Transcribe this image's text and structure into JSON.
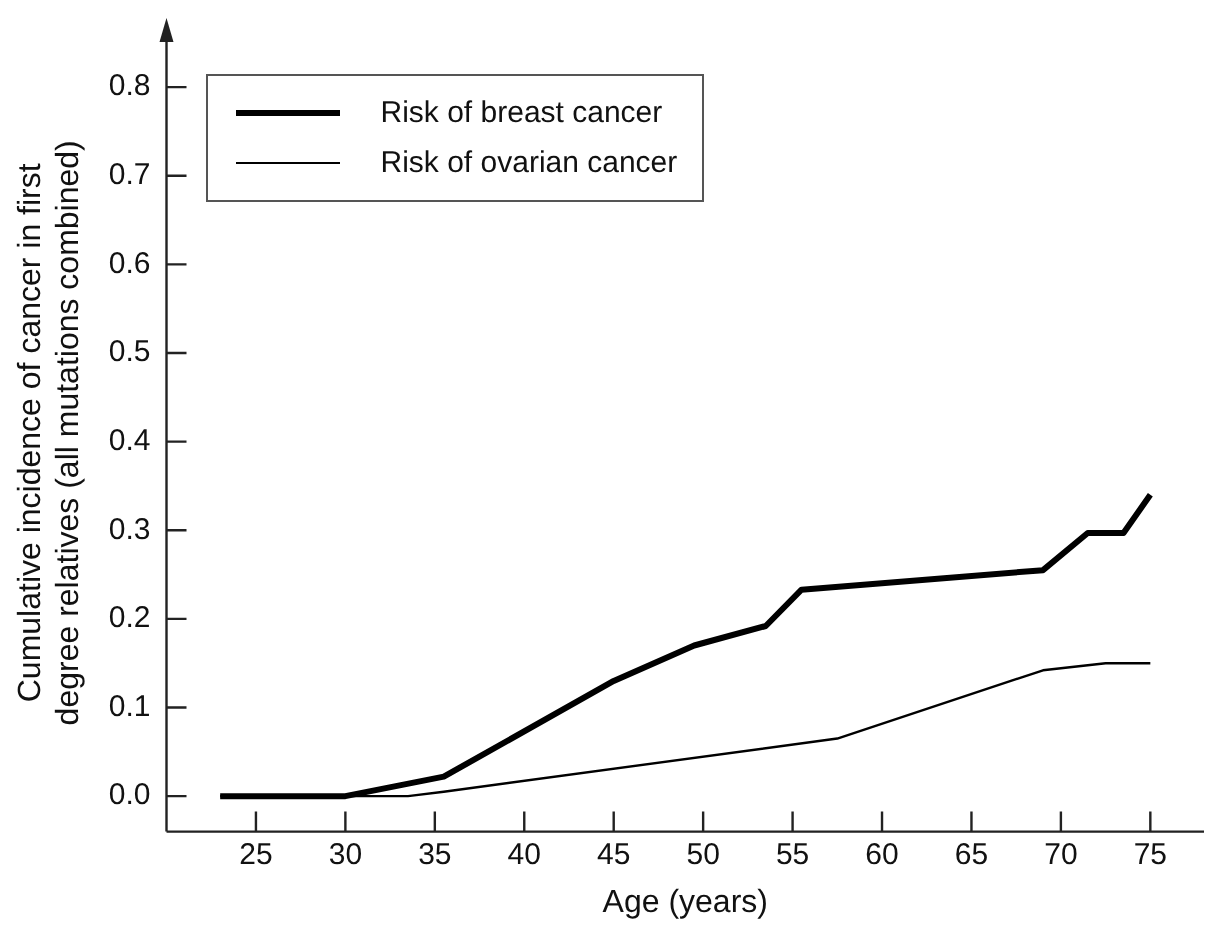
{
  "chart_data": {
    "type": "line",
    "xlabel": "Age (years)",
    "ylabel": "Cumulative incidence of cancer in first degree relatives (all mutations combined)",
    "xlim": [
      20,
      78
    ],
    "xticks": [
      25,
      30,
      35,
      40,
      45,
      50,
      55,
      60,
      65,
      70,
      75
    ],
    "ylim": [
      -0.04,
      0.86
    ],
    "yticks": [
      {
        "value": 0,
        "label": "0.0"
      },
      0.1,
      0.2,
      0.3,
      0.4,
      0.5,
      0.6,
      0.7,
      0.8
    ],
    "grid": false,
    "legend": "top left",
    "marker": "none",
    "line_style": "solid",
    "series": [
      {
        "name": "Risk of breast cancer",
        "color": "#000000",
        "x": [
          23,
          30,
          35.5,
          45,
          49.5,
          53.5,
          55.5,
          69,
          71.5,
          73.5,
          75
        ],
        "values": [
          0,
          0,
          0.022,
          0.13,
          0.17,
          0.192,
          0.233,
          0.255,
          0.297,
          0.297,
          0.34
        ]
      },
      {
        "name": "Risk of ovarian cancer",
        "color": "#000000",
        "x": [
          23,
          33.5,
          35.5,
          57.5,
          69,
          72.5,
          75
        ],
        "values": [
          0,
          0,
          0.005,
          0.065,
          0.142,
          0.15,
          0.15
        ]
      }
    ]
  }
}
